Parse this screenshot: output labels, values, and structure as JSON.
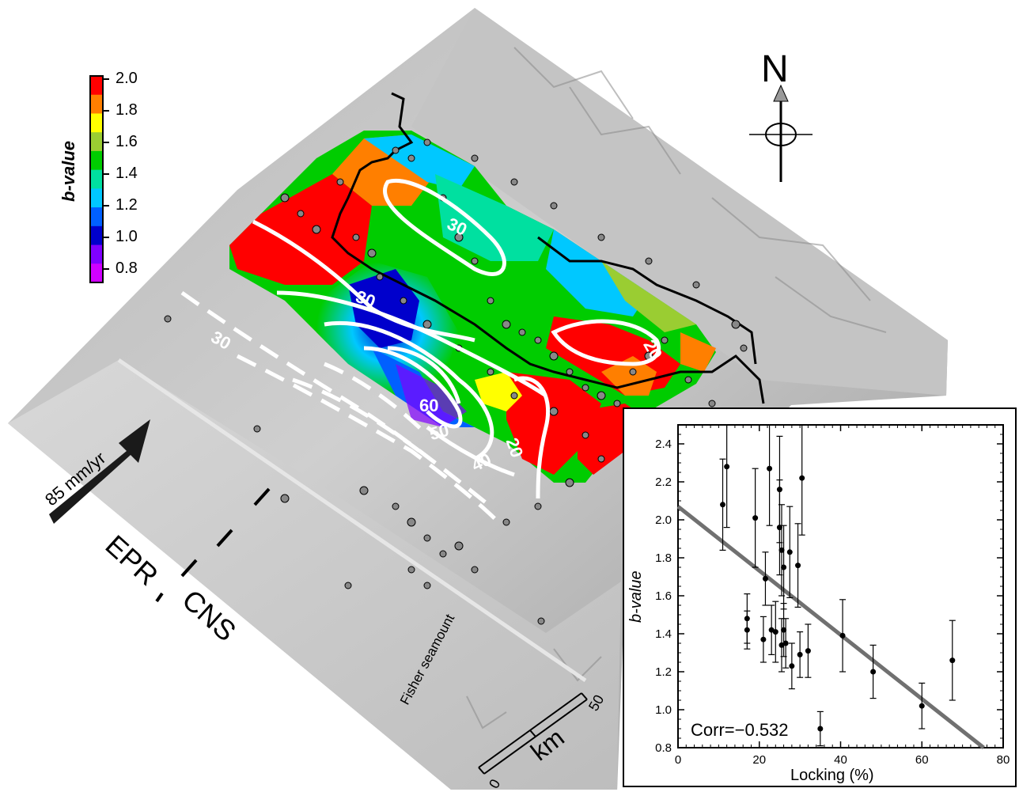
{
  "colorbar": {
    "label": "b-value",
    "ticks": [
      "2.0",
      "1.8",
      "1.6",
      "1.4",
      "1.2",
      "1.0",
      "0.8"
    ],
    "colors": [
      "#ff0000",
      "#ff7f00",
      "#ffff00",
      "#9acd32",
      "#00cc00",
      "#00e0a0",
      "#00c8ff",
      "#0060ff",
      "#0000cc",
      "#8000ff",
      "#d000ff"
    ]
  },
  "compass": {
    "label": "N"
  },
  "map": {
    "plate_rate_label": "85 mm/yr",
    "epr_label": "EPR",
    "cns_label": "CNS",
    "seamount_label": "Fisher seamount",
    "scale_label": "km",
    "scale_ticks": [
      "0",
      "50"
    ],
    "contours": [
      {
        "label": "30",
        "style": "solid"
      },
      {
        "label": "30",
        "style": "solid"
      },
      {
        "label": "30",
        "style": "dashed"
      },
      {
        "label": "60",
        "style": "solid"
      },
      {
        "label": "50",
        "style": "solid"
      },
      {
        "label": "40",
        "style": "solid"
      },
      {
        "label": "20",
        "style": "solid"
      },
      {
        "label": "20",
        "style": "solid"
      }
    ]
  },
  "chart_data": {
    "type": "scatter",
    "title": "",
    "xlabel": "Locking (%)",
    "ylabel": "b-value",
    "xlim": [
      0,
      80
    ],
    "ylim": [
      0.8,
      2.5
    ],
    "xticks": [
      0,
      20,
      40,
      60,
      80
    ],
    "yticks": [
      0.8,
      1.0,
      1.2,
      1.4,
      1.6,
      1.8,
      2.0,
      2.2,
      2.4
    ],
    "annotation": "Corr=−0.532",
    "fit_line": {
      "x": [
        0,
        75.2
      ],
      "y": [
        2.07,
        0.8
      ]
    },
    "points": [
      {
        "x": 11,
        "y": 2.08,
        "err_low": 0.24,
        "err_high": 0.24
      },
      {
        "x": 12,
        "y": 2.28,
        "err_low": 0.32,
        "err_high": 0.32
      },
      {
        "x": 17,
        "y": 1.48,
        "err_low": 0.13,
        "err_high": 0.13
      },
      {
        "x": 17,
        "y": 1.42,
        "err_low": 0.1,
        "err_high": 0.1
      },
      {
        "x": 19,
        "y": 2.01,
        "err_low": 0.26,
        "err_high": 0.26
      },
      {
        "x": 21,
        "y": 1.37,
        "err_low": 0.12,
        "err_high": 0.12
      },
      {
        "x": 21.5,
        "y": 1.69,
        "err_low": 0.14,
        "err_high": 0.14
      },
      {
        "x": 22.5,
        "y": 2.27,
        "err_low": 0.3,
        "err_high": 0.3
      },
      {
        "x": 23,
        "y": 1.42,
        "err_low": 0.13,
        "err_high": 0.13
      },
      {
        "x": 24,
        "y": 1.41,
        "err_low": 0.16,
        "err_high": 0.16
      },
      {
        "x": 25,
        "y": 2.16,
        "err_low": 0.28,
        "err_high": 0.28
      },
      {
        "x": 25,
        "y": 1.96,
        "err_low": 0.25,
        "err_high": 0.25
      },
      {
        "x": 25.5,
        "y": 1.84,
        "err_low": 0.24,
        "err_high": 0.24
      },
      {
        "x": 25.5,
        "y": 1.34,
        "err_low": 0.14,
        "err_high": 0.14
      },
      {
        "x": 26,
        "y": 1.75,
        "err_low": 0.22,
        "err_high": 0.22
      },
      {
        "x": 26,
        "y": 1.42,
        "err_low": 0.14,
        "err_high": 0.14
      },
      {
        "x": 26.5,
        "y": 1.35,
        "err_low": 0.13,
        "err_high": 0.13
      },
      {
        "x": 27.5,
        "y": 1.83,
        "err_low": 0.24,
        "err_high": 0.24
      },
      {
        "x": 28,
        "y": 1.23,
        "err_low": 0.12,
        "err_high": 0.12
      },
      {
        "x": 29.5,
        "y": 1.76,
        "err_low": 0.22,
        "err_high": 0.22
      },
      {
        "x": 30,
        "y": 1.29,
        "err_low": 0.12,
        "err_high": 0.12
      },
      {
        "x": 30.5,
        "y": 2.22,
        "err_low": 0.3,
        "err_high": 0.3
      },
      {
        "x": 32,
        "y": 1.31,
        "err_low": 0.14,
        "err_high": 0.14
      },
      {
        "x": 35,
        "y": 0.9,
        "err_low": 0.09,
        "err_high": 0.09
      },
      {
        "x": 40.5,
        "y": 1.39,
        "err_low": 0.19,
        "err_high": 0.19
      },
      {
        "x": 48,
        "y": 1.2,
        "err_low": 0.14,
        "err_high": 0.14
      },
      {
        "x": 60,
        "y": 1.02,
        "err_low": 0.12,
        "err_high": 0.12
      },
      {
        "x": 67.5,
        "y": 1.26,
        "err_low": 0.21,
        "err_high": 0.21
      }
    ]
  }
}
